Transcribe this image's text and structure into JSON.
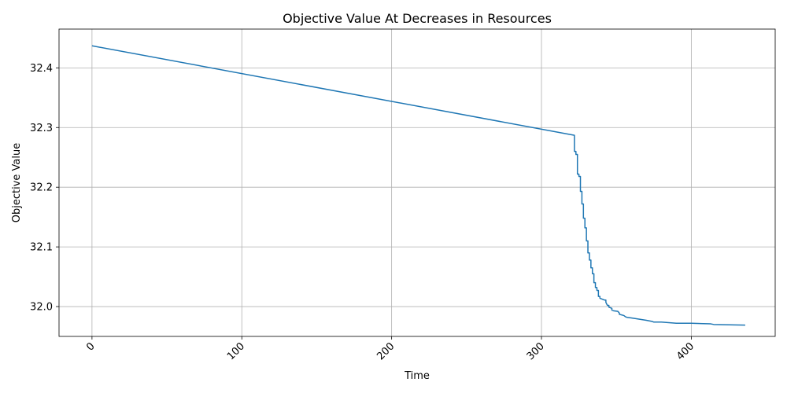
{
  "chart_data": {
    "type": "line",
    "title": "Objective Value At Decreases in Resources",
    "xlabel": "Time",
    "ylabel": "Objective Value",
    "xlim": [
      -22,
      456
    ],
    "ylim": [
      31.95,
      32.465
    ],
    "x_ticks": [
      0,
      100,
      200,
      300,
      400
    ],
    "x_tick_labels": [
      "0",
      "100",
      "200",
      "300",
      "400"
    ],
    "y_ticks": [
      32.0,
      32.1,
      32.2,
      32.3,
      32.4
    ],
    "y_tick_labels": [
      "32.0",
      "32.1",
      "32.2",
      "32.3",
      "32.4"
    ],
    "x_tick_rotation_deg": 45,
    "grid": true,
    "series": [
      {
        "color": "#1f77b4",
        "x": [
          0,
          322,
          322,
          323,
          323,
          324,
          324,
          325,
          325,
          326,
          326,
          327,
          327,
          328,
          328,
          329,
          329,
          330,
          330,
          331,
          331,
          332,
          332,
          333,
          333,
          334,
          334,
          335,
          335,
          336,
          336,
          337,
          337,
          338,
          338,
          339,
          339,
          340,
          342,
          343,
          343,
          344,
          345,
          345,
          347,
          347,
          348,
          351,
          352,
          352,
          355,
          356,
          357,
          360,
          365,
          370,
          372,
          374,
          375,
          380,
          385,
          390,
          400,
          413,
          415,
          436
        ],
        "y": [
          32.437,
          32.287,
          32.26,
          32.26,
          32.255,
          32.255,
          32.222,
          32.222,
          32.218,
          32.218,
          32.193,
          32.193,
          32.172,
          32.172,
          32.148,
          32.148,
          32.132,
          32.132,
          32.11,
          32.11,
          32.09,
          32.09,
          32.078,
          32.078,
          32.065,
          32.065,
          32.055,
          32.055,
          32.04,
          32.04,
          32.032,
          32.032,
          32.027,
          32.027,
          32.017,
          32.017,
          32.014,
          32.013,
          32.011,
          32.011,
          32.007,
          32.002,
          32.002,
          31.999,
          31.997,
          31.994,
          31.993,
          31.992,
          31.989,
          31.987,
          31.985,
          31.983,
          31.982,
          31.981,
          31.979,
          31.977,
          31.976,
          31.975,
          31.974,
          31.974,
          31.973,
          31.972,
          31.972,
          31.971,
          31.97,
          31.969
        ]
      }
    ]
  }
}
